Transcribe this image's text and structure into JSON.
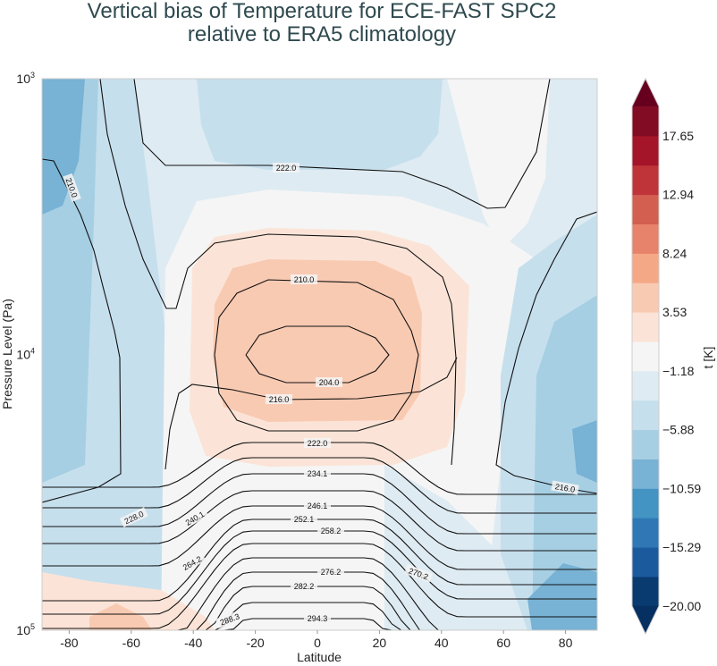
{
  "chart_data": {
    "type": "heatmap",
    "title_line1": "Vertical bias of Temperature for ECE-FAST SPC2",
    "title_line2": "relative to ERA5 climatology",
    "xlabel": "Latitude",
    "ylabel": "Pressure Level (Pa)",
    "xlim": [
      -90,
      90
    ],
    "ylim": [
      100000,
      1000
    ],
    "yscale": "log",
    "x_ticks": [
      "-80",
      "-60",
      "-40",
      "-20",
      "0",
      "20",
      "40",
      "60",
      "80"
    ],
    "y_ticks": [
      {
        "base": "10",
        "exp": "3"
      },
      {
        "base": "10",
        "exp": "4"
      },
      {
        "base": "10",
        "exp": "5"
      }
    ],
    "colorbar": {
      "label": "t [K]",
      "colormap": "RdBu_r",
      "extend": "both",
      "range": [
        -20.0,
        20.0
      ],
      "tick_labels": [
        "17.65",
        "12.94",
        "8.24",
        "3.53",
        "−1.18",
        "−5.88",
        "−10.59",
        "−15.29",
        "−20.00"
      ],
      "tick_values": [
        17.65,
        12.94,
        8.24,
        3.53,
        -1.18,
        -5.88,
        -10.59,
        -15.29,
        -20.0
      ],
      "bin_colors": [
        "#0a3b70",
        "#1c5a9e",
        "#2f78b5",
        "#4393c3",
        "#78b2d5",
        "#a6cfe3",
        "#c6dfed",
        "#deebf2",
        "#f5f5f5",
        "#fbe4d7",
        "#f9cab2",
        "#f5a886",
        "#e7836a",
        "#d35f51",
        "#bf3439",
        "#a51529",
        "#820c24"
      ],
      "under_color": "#053061",
      "over_color": "#67001f"
    },
    "contour_labels": [
      "222.0",
      "210.0",
      "210.0",
      "204.0",
      "216.0",
      "222.0",
      "228.0",
      "234.1",
      "240.1",
      "246.1",
      "252.1",
      "258.2",
      "264.2",
      "270.2",
      "276.2",
      "282.2",
      "288.3",
      "294.3",
      "216.0"
    ]
  }
}
